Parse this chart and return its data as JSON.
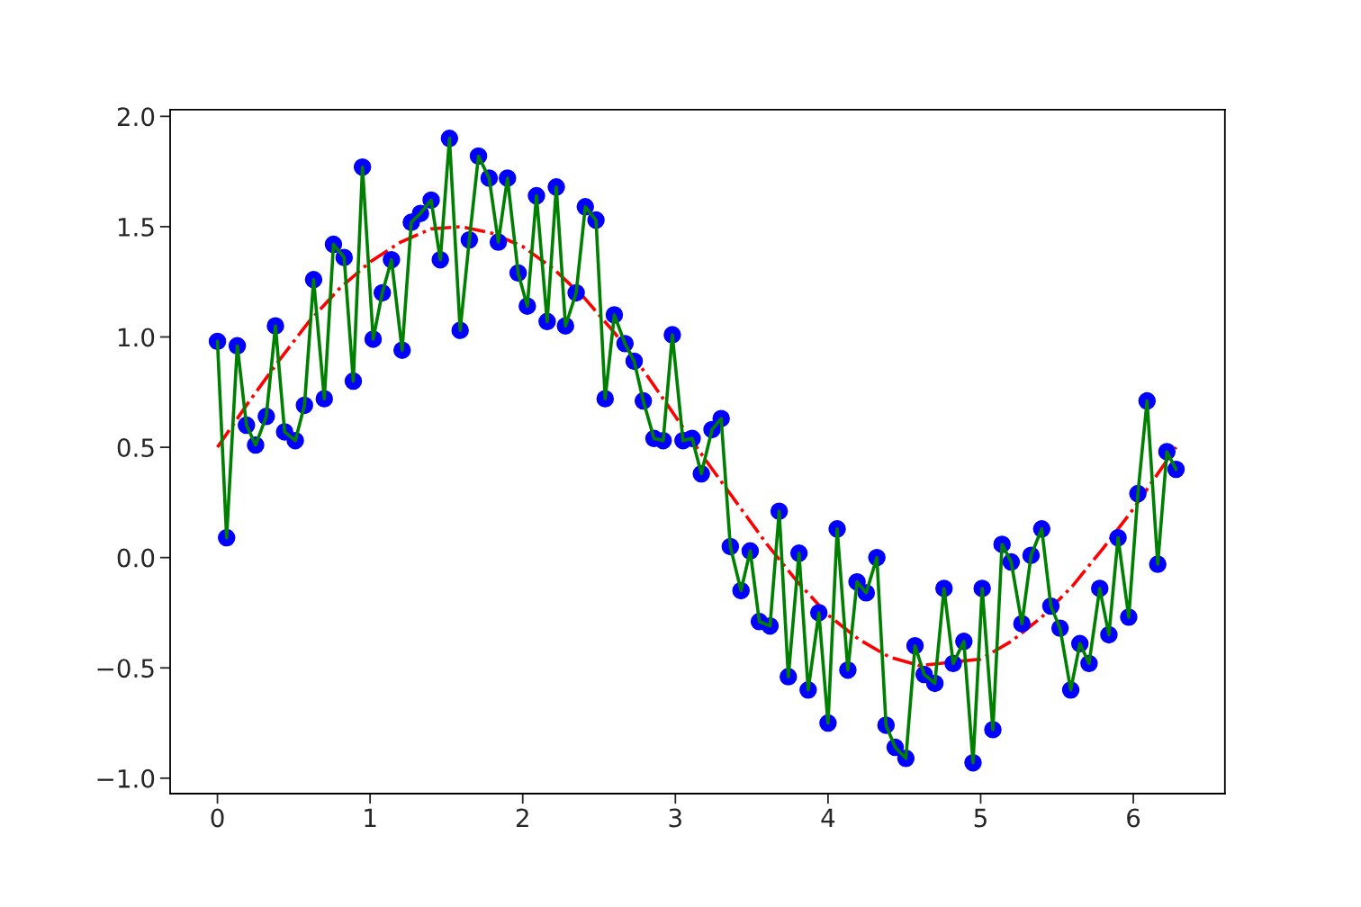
{
  "chart_data": {
    "type": "line",
    "x": [
      0,
      0.06,
      0.13,
      0.19,
      0.25,
      0.32,
      0.38,
      0.44,
      0.51,
      0.57,
      0.63,
      0.7,
      0.76,
      0.83,
      0.89,
      0.95,
      1.02,
      1.08,
      1.14,
      1.21,
      1.27,
      1.33,
      1.4,
      1.46,
      1.52,
      1.59,
      1.65,
      1.71,
      1.78,
      1.84,
      1.9,
      1.97,
      2.03,
      2.09,
      2.16,
      2.22,
      2.28,
      2.35,
      2.41,
      2.48,
      2.54,
      2.6,
      2.67,
      2.73,
      2.79,
      2.86,
      2.92,
      2.98,
      3.05,
      3.11,
      3.17,
      3.24,
      3.3,
      3.36,
      3.43,
      3.49,
      3.55,
      3.62,
      3.68,
      3.74,
      3.81,
      3.87,
      3.94,
      4.0,
      4.06,
      4.13,
      4.19,
      4.25,
      4.32,
      4.38,
      4.44,
      4.51,
      4.57,
      4.63,
      4.7,
      4.76,
      4.82,
      4.89,
      4.95,
      5.01,
      5.08,
      5.14,
      5.2,
      5.27,
      5.33,
      5.4,
      5.46,
      5.52,
      5.59,
      5.65,
      5.71,
      5.78,
      5.84,
      5.9,
      5.97,
      6.03,
      6.09,
      6.16,
      6.22,
      6.28
    ],
    "series": [
      {
        "color": "#ff0000",
        "line_style": "dashdot",
        "marker": "none",
        "x": [
          0,
          0.2,
          0.4,
          0.6,
          0.8,
          1.0,
          1.2,
          1.4,
          1.6,
          1.8,
          2.0,
          2.2,
          2.4,
          2.6,
          2.8,
          3.0,
          3.2,
          3.4,
          3.6,
          3.8,
          4.0,
          4.2,
          4.4,
          4.6,
          5.0,
          5.2,
          5.4,
          5.6,
          5.8,
          6.0,
          6.2,
          6.28
        ],
        "values": [
          0.5,
          0.7,
          0.89,
          1.07,
          1.22,
          1.34,
          1.43,
          1.49,
          1.5,
          1.47,
          1.41,
          1.31,
          1.18,
          1.02,
          0.84,
          0.64,
          0.44,
          0.25,
          0.06,
          -0.11,
          -0.26,
          -0.37,
          -0.45,
          -0.49,
          -0.46,
          -0.38,
          -0.27,
          -0.13,
          0.04,
          0.22,
          0.42,
          0.5
        ]
      },
      {
        "type": "scatter",
        "color": "#0000ff",
        "marker": "circle",
        "values": [
          0.98,
          0.09,
          0.96,
          0.6,
          0.51,
          0.64,
          1.05,
          0.57,
          0.53,
          0.69,
          1.26,
          0.72,
          1.42,
          1.36,
          0.8,
          1.77,
          0.99,
          1.2,
          1.35,
          0.94,
          1.52,
          1.56,
          1.62,
          1.35,
          1.9,
          1.03,
          1.44,
          1.82,
          1.72,
          1.43,
          1.72,
          1.29,
          1.14,
          1.64,
          1.07,
          1.68,
          1.05,
          1.2,
          1.59,
          1.53,
          0.72,
          1.1,
          0.97,
          0.89,
          0.71,
          0.54,
          0.53,
          1.01,
          0.53,
          0.54,
          0.38,
          0.58,
          0.63,
          0.05,
          -0.15,
          0.03,
          -0.29,
          -0.31,
          0.21,
          -0.54,
          0.02,
          -0.6,
          -0.25,
          -0.75,
          0.13,
          -0.51,
          -0.11,
          -0.16,
          0.0,
          -0.76,
          -0.86,
          -0.91,
          -0.4,
          -0.53,
          -0.57,
          -0.14,
          -0.48,
          -0.38,
          -0.93,
          -0.14,
          -0.78,
          0.06,
          -0.02,
          -0.3,
          0.01,
          0.13,
          -0.22,
          -0.32,
          -0.6,
          -0.39,
          -0.48,
          -0.14,
          -0.35,
          0.09,
          -0.27,
          0.29,
          0.71,
          -0.03,
          0.48,
          0.4
        ]
      },
      {
        "color": "#008000",
        "line_style": "solid",
        "marker": "none",
        "values": [
          0.98,
          0.09,
          0.96,
          0.6,
          0.51,
          0.64,
          1.05,
          0.57,
          0.53,
          0.69,
          1.26,
          0.72,
          1.42,
          1.36,
          0.8,
          1.77,
          0.99,
          1.2,
          1.35,
          0.94,
          1.52,
          1.56,
          1.62,
          1.35,
          1.9,
          1.03,
          1.44,
          1.82,
          1.72,
          1.43,
          1.72,
          1.29,
          1.14,
          1.64,
          1.07,
          1.68,
          1.05,
          1.2,
          1.59,
          1.53,
          0.72,
          1.1,
          0.97,
          0.89,
          0.71,
          0.54,
          0.53,
          1.01,
          0.53,
          0.54,
          0.38,
          0.58,
          0.63,
          0.05,
          -0.15,
          0.03,
          -0.29,
          -0.31,
          0.21,
          -0.54,
          0.02,
          -0.6,
          -0.25,
          -0.75,
          0.13,
          -0.51,
          -0.11,
          -0.16,
          0.0,
          -0.76,
          -0.86,
          -0.91,
          -0.4,
          -0.53,
          -0.57,
          -0.14,
          -0.48,
          -0.38,
          -0.93,
          -0.14,
          -0.78,
          0.06,
          -0.02,
          -0.3,
          0.01,
          0.13,
          -0.22,
          -0.32,
          -0.6,
          -0.39,
          -0.48,
          -0.14,
          -0.35,
          0.09,
          -0.27,
          0.29,
          0.71,
          -0.03,
          0.48,
          0.4
        ]
      }
    ],
    "xlim": [
      -0.31,
      6.6
    ],
    "ylim": [
      -1.07,
      2.03
    ],
    "xticks": [
      0,
      1,
      2,
      3,
      4,
      5,
      6
    ],
    "yticks": [
      {
        "value": -1.0,
        "label": "−1.0"
      },
      {
        "value": -0.5,
        "label": "−0.5"
      },
      {
        "value": 0.0,
        "label": "0.0"
      },
      {
        "value": 0.5,
        "label": "0.5"
      },
      {
        "value": 1.0,
        "label": "1.0"
      },
      {
        "value": 1.5,
        "label": "1.5"
      },
      {
        "value": 2.0,
        "label": "2.0"
      }
    ],
    "grid": false
  }
}
